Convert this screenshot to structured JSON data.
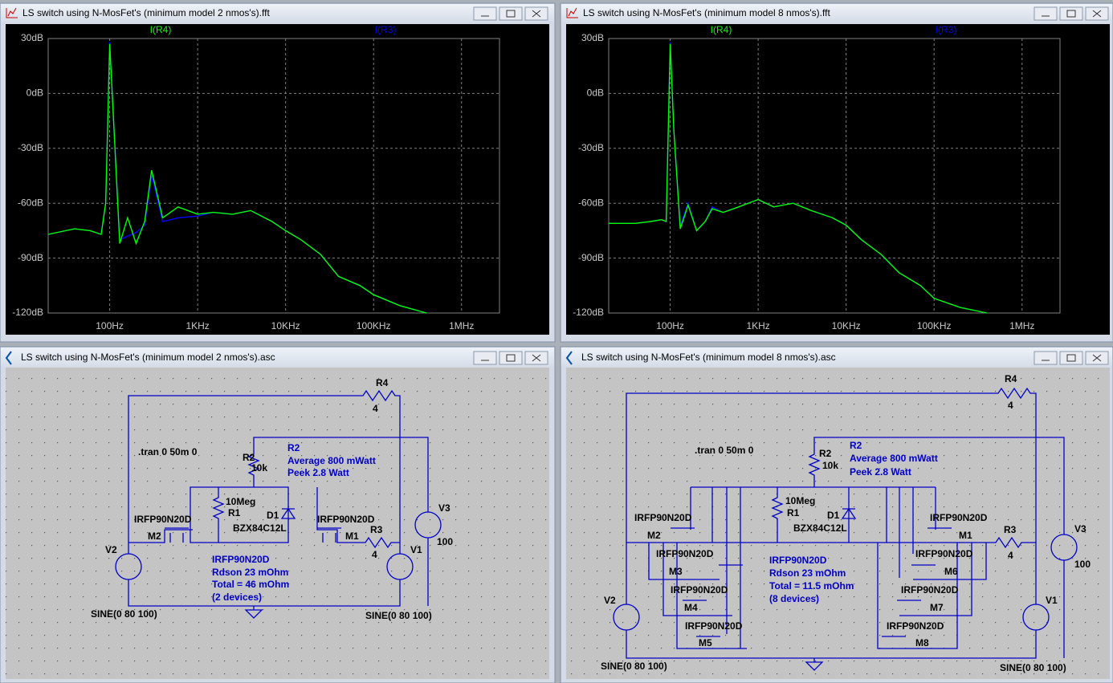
{
  "chart_data": [
    {
      "type": "line",
      "title": "LS switch using N-MosFet's (minimum model 2 nmos's).fft",
      "xscale": "log",
      "xlim": [
        20,
        2700000
      ],
      "ylim": [
        -120,
        30
      ],
      "grid": true,
      "xticks": [
        {
          "value": 100,
          "label": "100Hz"
        },
        {
          "value": 1000,
          "label": "1KHz"
        },
        {
          "value": 10000,
          "label": "10KHz"
        },
        {
          "value": 100000,
          "label": "100KHz"
        },
        {
          "value": 1000000,
          "label": "1MHz"
        }
      ],
      "yticks": [
        {
          "value": 30,
          "label": "30dB"
        },
        {
          "value": 0,
          "label": "0dB"
        },
        {
          "value": -30,
          "label": "-30dB"
        },
        {
          "value": -60,
          "label": "-60dB"
        },
        {
          "value": -90,
          "label": "-90dB"
        },
        {
          "value": -120,
          "label": "-120dB"
        }
      ],
      "x": [
        20,
        40,
        60,
        80,
        90,
        100,
        110,
        130,
        160,
        200,
        250,
        300,
        400,
        600,
        1000,
        1500,
        2500,
        4000,
        7000,
        10000,
        15000,
        25000,
        40000,
        70000,
        100000,
        200000,
        400000
      ],
      "series": [
        {
          "name": "I(R4)",
          "color": "#00ff00",
          "values": [
            -77,
            -74,
            -75,
            -77,
            -60,
            27,
            -12,
            -82,
            -68,
            -82,
            -70,
            -42,
            -68,
            -62,
            -66,
            -65,
            -66,
            -64,
            -70,
            -75,
            -80,
            -88,
            -100,
            -105,
            -110,
            -116,
            -120
          ]
        },
        {
          "name": "I(R3)",
          "color": "#0000ff",
          "values": [
            -77,
            -74,
            -75,
            -77,
            -60,
            28,
            -10,
            -80,
            -78,
            -76,
            -72,
            -45,
            -70,
            -68,
            -67,
            -65,
            -66,
            -64,
            -70,
            -75,
            -80,
            -88,
            -100,
            -105,
            -110,
            -116,
            -120
          ]
        }
      ]
    },
    {
      "type": "line",
      "title": "LS switch using N-MosFet's (minimum model 8 nmos's).fft",
      "xscale": "log",
      "xlim": [
        20,
        2700000
      ],
      "ylim": [
        -120,
        30
      ],
      "grid": true,
      "xticks": [
        {
          "value": 100,
          "label": "100Hz"
        },
        {
          "value": 1000,
          "label": "1KHz"
        },
        {
          "value": 10000,
          "label": "10KHz"
        },
        {
          "value": 100000,
          "label": "100KHz"
        },
        {
          "value": 1000000,
          "label": "1MHz"
        }
      ],
      "yticks": [
        {
          "value": 30,
          "label": "30dB"
        },
        {
          "value": 0,
          "label": "0dB"
        },
        {
          "value": -30,
          "label": "-30dB"
        },
        {
          "value": -60,
          "label": "-60dB"
        },
        {
          "value": -90,
          "label": "-90dB"
        },
        {
          "value": -120,
          "label": "-120dB"
        }
      ],
      "x": [
        20,
        40,
        60,
        80,
        90,
        100,
        110,
        130,
        160,
        200,
        250,
        300,
        400,
        600,
        1000,
        1500,
        2500,
        4000,
        7000,
        10000,
        15000,
        25000,
        40000,
        70000,
        100000,
        200000,
        400000
      ],
      "series": [
        {
          "name": "I(R4)",
          "color": "#00ff00",
          "values": [
            -71,
            -71,
            -70,
            -69,
            -70,
            27,
            -20,
            -74,
            -61,
            -75,
            -70,
            -63,
            -65,
            -62,
            -58,
            -62,
            -60,
            -64,
            -68,
            -72,
            -80,
            -88,
            -98,
            -105,
            -112,
            -117,
            -120
          ]
        },
        {
          "name": "I(R3)",
          "color": "#0000ff",
          "values": [
            -71,
            -71,
            -70,
            -69,
            -70,
            28,
            -20,
            -72,
            -60,
            -75,
            -70,
            -62,
            -65,
            -62,
            -58,
            -62,
            -60,
            -64,
            -68,
            -72,
            -80,
            -88,
            -98,
            -105,
            -112,
            -117,
            -120
          ]
        }
      ]
    }
  ],
  "schematics": [
    {
      "title": "LS switch using N-MosFet's (minimum model 2 nmos's).asc",
      "labels": [
        "R4",
        "4",
        ".tran 0 50m 0",
        "R2",
        "Average 800 mWatt",
        "Peek 2.8 Watt",
        "R2",
        "10k",
        "10Meg",
        "R1",
        "D1",
        "IRFP90N20D",
        "IRFP90N20D",
        "BZX84C12L",
        "M2",
        "M1",
        "R3",
        "4",
        "V3",
        "100",
        "V2",
        "V1",
        "IRFP90N20D",
        "Rdson 23 mOhm",
        "Total = 46 mOhm",
        "(2 devices)",
        "SINE(0 80 100)",
        "SINE(0 80 100)"
      ]
    },
    {
      "title": "LS switch using N-MosFet's (minimum model 8 nmos's).asc",
      "labels": [
        "R4",
        "4",
        ".tran 0 50m 0",
        "R2",
        "Average 800 mWatt",
        "Peek 2.8 Watt",
        "R2",
        "10k",
        "10Meg",
        "R1",
        "D1",
        "IRFP90N20D",
        "IRFP90N20D",
        "BZX84C12L",
        "M2",
        "M1",
        "R3",
        "4",
        "V3",
        "100",
        "IRFP90N20D",
        "IRFP90N20D",
        "IRFP90N20D",
        "M3",
        "M6",
        "Rdson 23 mOhm",
        "Total = 11.5 mOhm",
        "(8 devices)",
        "IRFP90N20D",
        "IRFP90N20D",
        "V2",
        "V1",
        "M4",
        "M7",
        "IRFP90N20D",
        "IRFP90N20D",
        "M5",
        "M8",
        "SINE(0 80 100)",
        "SINE(0 80 100)"
      ]
    }
  ]
}
